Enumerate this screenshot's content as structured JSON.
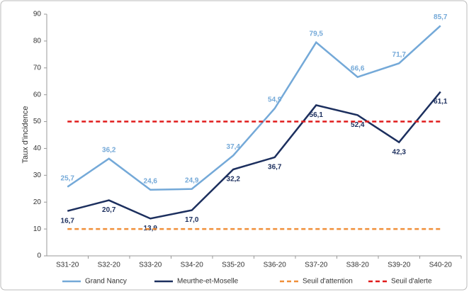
{
  "chart_data": {
    "type": "line",
    "y_label": "Taux d'incidence",
    "categories": [
      "S31-20",
      "S32-20",
      "S33-20",
      "S34-20",
      "S35-20",
      "S36-20",
      "S37-20",
      "S38-20",
      "S39-20",
      "S40-20"
    ],
    "series": [
      {
        "name": "Grand Nancy",
        "color": "#74a9d8",
        "dashed": false,
        "values": [
          25.7,
          36.2,
          24.6,
          24.9,
          37.4,
          54.9,
          79.5,
          66.6,
          71.7,
          85.7
        ],
        "value_labels": [
          "25,7",
          "36,2",
          "24,6",
          "24,9",
          "37,4",
          "54,9",
          "79,5",
          "66,6",
          "71,7",
          "85,7"
        ]
      },
      {
        "name": "Meurthe-et-Moselle",
        "color": "#1c2f5e",
        "dashed": false,
        "values": [
          16.7,
          20.7,
          13.9,
          17.0,
          32.2,
          36.7,
          56.1,
          52.4,
          42.3,
          61.1
        ],
        "value_labels": [
          "16,7",
          "20,7",
          "13,9",
          "17,0",
          "32,2",
          "36,7",
          "56,1",
          "52,4",
          "42,3",
          "61,1"
        ]
      },
      {
        "name": "Seuil d'attention",
        "color": "#f0903a",
        "dashed": true,
        "values": [
          10,
          10,
          10,
          10,
          10,
          10,
          10,
          10,
          10,
          10
        ]
      },
      {
        "name": "Seuil d'alerte",
        "color": "#e01b1b",
        "dashed": true,
        "values": [
          50,
          50,
          50,
          50,
          50,
          50,
          50,
          50,
          50,
          50
        ]
      }
    ],
    "ylim": [
      0,
      90
    ],
    "yticks": [
      0,
      10,
      20,
      30,
      40,
      50,
      60,
      70,
      80,
      90
    ],
    "grid": false,
    "legend": "bottom"
  }
}
